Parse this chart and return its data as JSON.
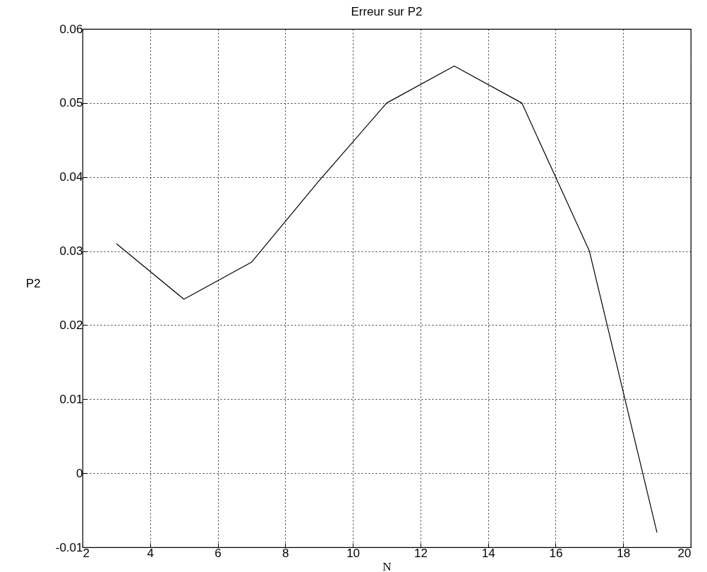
{
  "chart_data": {
    "type": "line",
    "title": "Erreur sur P2",
    "xlabel": "N",
    "ylabel": "P2",
    "x": [
      3,
      5,
      7,
      9,
      11,
      13,
      15,
      17,
      19
    ],
    "series": [
      {
        "color": "#000000",
        "values": [
          0.031,
          0.0235,
          0.0285,
          0.0395,
          0.05,
          0.055,
          0.05,
          0.03,
          -0.008
        ]
      }
    ],
    "xlim": [
      2,
      20
    ],
    "xticks": [
      2,
      4,
      6,
      8,
      10,
      12,
      14,
      16,
      18,
      20
    ],
    "ylim": [
      -0.01,
      0.06
    ],
    "yticks": [
      -0.01,
      {
        "value": 0,
        "label": "0"
      },
      0.01,
      0.02,
      0.03,
      0.04,
      0.05,
      0.06
    ],
    "grid": true,
    "marker": "none",
    "line_style": "solid"
  }
}
